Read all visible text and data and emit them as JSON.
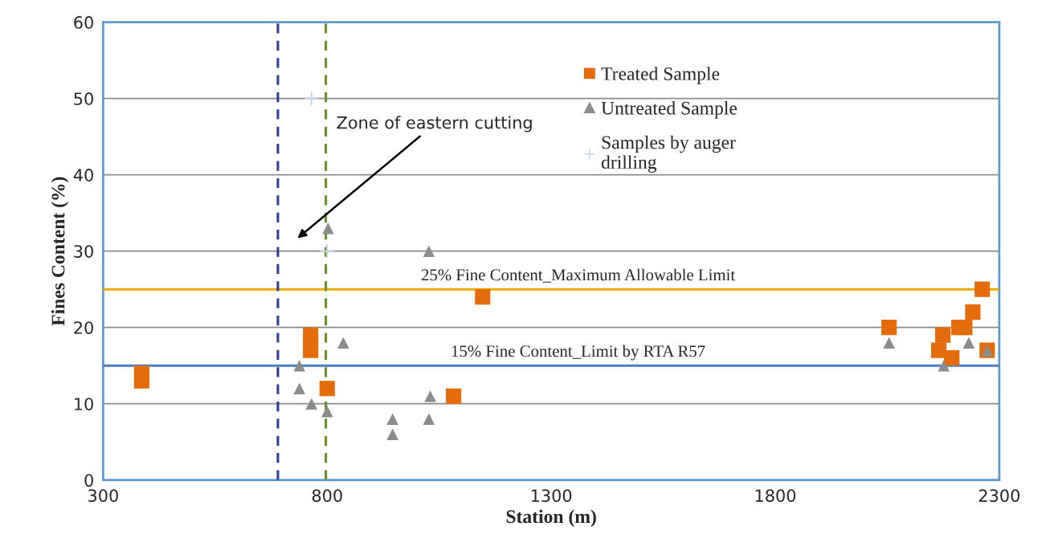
{
  "chart_data": {
    "type": "scatter",
    "xlabel": "Station (m)",
    "ylabel": "Fines Content (%)",
    "xlim": [
      300,
      2300
    ],
    "xticks": [
      300,
      800,
      1300,
      1800,
      2300
    ],
    "ylim": [
      0,
      60
    ],
    "yticks": [
      0,
      10,
      20,
      30,
      40,
      50,
      60
    ],
    "grid": "y",
    "legend": "top",
    "series": [
      {
        "name": "Treated Sample",
        "color": "#e46c0a",
        "marker": "square",
        "x": [
          386,
          386,
          763,
          763,
          763,
          800,
          1082,
          1147,
          2054,
          2165,
          2174,
          2194,
          2210,
          2223,
          2241,
          2262,
          2273
        ],
        "values": [
          14,
          13,
          19,
          18,
          17,
          12,
          11,
          24,
          20,
          17,
          19,
          16,
          20,
          20,
          22,
          25,
          17
        ]
      },
      {
        "name": "Untreated Sample",
        "color": "#8c8c8c",
        "marker": "triangle",
        "x": [
          802,
          1027,
          836,
          738,
          738,
          765,
          800,
          946,
          946,
          1030,
          1027,
          2054,
          2232,
          2176,
          2273
        ],
        "values": [
          33,
          30,
          18,
          15,
          12,
          10,
          9,
          8,
          6,
          11,
          8,
          18,
          18,
          15,
          17
        ]
      },
      {
        "name": "Samples by auger\ndrilling",
        "color": "#c6d4ea",
        "marker": "cross",
        "x": [
          765,
          800
        ],
        "values": [
          50,
          30
        ]
      }
    ],
    "ref_lines": [
      {
        "axis": "y",
        "value": 25,
        "label": "25% Fine Content_Maximum Allowable Limit",
        "color": "#f0a800",
        "line_style": "solid"
      },
      {
        "axis": "y",
        "value": 15,
        "label": "15% Fine Content_Limit by RTA R57",
        "color": "#4a7ec4",
        "line_style": "solid"
      },
      {
        "axis": "x",
        "value": 690,
        "label": null,
        "color": "#2e3f8f",
        "line_style": "dashed"
      },
      {
        "axis": "x",
        "value": 797,
        "label": null,
        "color": "#6b8e23",
        "line_style": "dashed"
      }
    ],
    "annotations": [
      "Zone of eastern cutting"
    ]
  }
}
